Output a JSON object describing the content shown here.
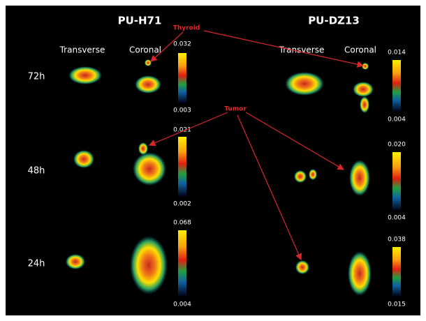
{
  "columns": [
    {
      "title": "PU-H71",
      "views": [
        "Transverse",
        "Coronal"
      ]
    },
    {
      "title": "PU-DZ13",
      "views": [
        "Transverse",
        "Coronal"
      ]
    }
  ],
  "rows": [
    "72h",
    "48h",
    "24h"
  ],
  "scales": [
    [
      {
        "max": "0.032",
        "min": "0.003"
      },
      {
        "max": "0.021",
        "min": "0.002"
      },
      {
        "max": "0.068",
        "min": "0.004"
      }
    ],
    [
      {
        "max": "0.014",
        "min": "0.004"
      },
      {
        "max": "0.020",
        "min": "0.004"
      },
      {
        "max": "0.038",
        "min": "0.015"
      }
    ]
  ],
  "annotations": [
    {
      "label": "Thyroid"
    },
    {
      "label": "Tumor"
    }
  ]
}
